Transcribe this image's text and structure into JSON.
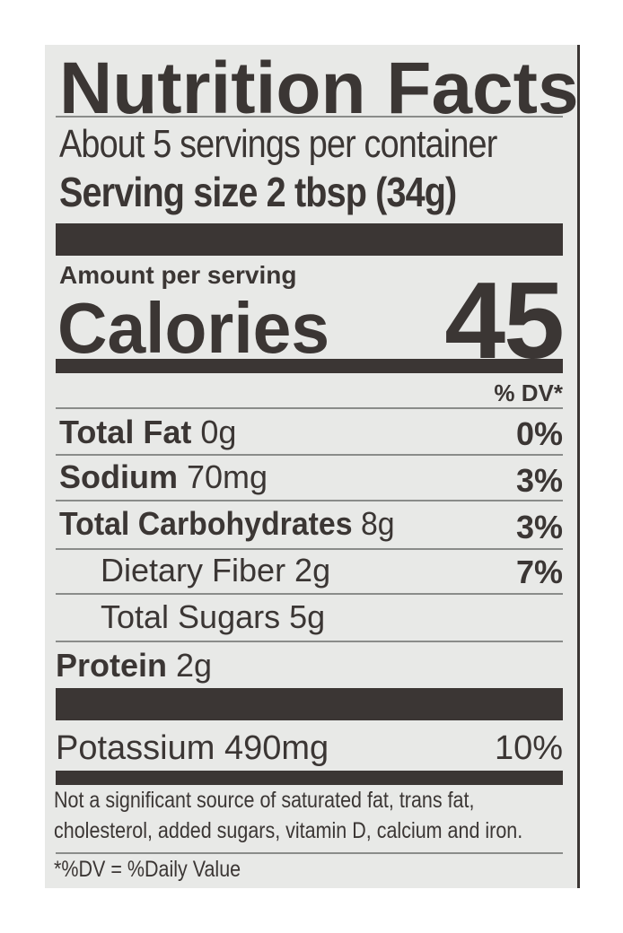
{
  "label": {
    "title": "Nutrition Facts",
    "servings_per_container": "About 5 servings per container",
    "serving_size": "Serving size 2 tbsp (34g)",
    "amount_per_serving": "Amount per serving",
    "calories_label": "Calories",
    "calories_value": "45",
    "dv_header": "% DV*",
    "nutrients": [
      {
        "name": "Total Fat",
        "amount": "0g",
        "dv": "0%"
      },
      {
        "name": "Sodium",
        "amount": "70mg",
        "dv": "3%"
      },
      {
        "name": "Total Carbohydrates",
        "amount": "8g",
        "dv": "3%"
      },
      {
        "name": "Dietary Fiber 2g",
        "dv": "7%"
      },
      {
        "name": "Total Sugars 5g"
      },
      {
        "name": "Protein",
        "amount": "2g"
      }
    ],
    "potassium": {
      "name": "Potassium 490mg",
      "dv": "10%"
    },
    "footnote_line1": "Not a significant source of saturated fat, trans fat,",
    "footnote_line2": "cholesterol, added sugars, vitamin D, calcium and iron.",
    "dv_note": "*%DV = %Daily Value"
  }
}
